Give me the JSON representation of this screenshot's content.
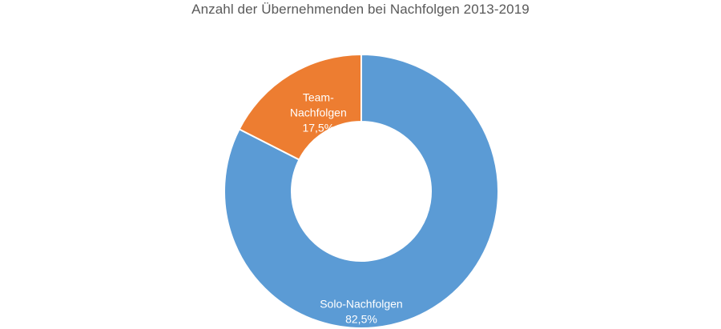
{
  "chart_data": {
    "type": "pie",
    "title": "Anzahl der Übernehmenden bei Nachfolgen 2013-2019",
    "categories": [
      "Solo-Nachfolgen",
      "Team-Nachfolgen"
    ],
    "values": [
      82.5,
      17.5
    ],
    "value_labels": [
      "82,5%",
      "17,5%"
    ],
    "label_lines": [
      [
        "Solo-Nachfolgen",
        "82,5%"
      ],
      [
        "Team-",
        "Nachfolgen",
        "17,5%"
      ]
    ],
    "colors": [
      "#5b9bd5",
      "#ed7d31"
    ],
    "donut": true,
    "legend": "none"
  }
}
